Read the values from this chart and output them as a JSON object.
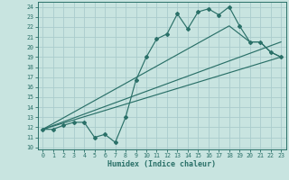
{
  "xlabel": "Humidex (Indice chaleur)",
  "bg_color": "#c8e4e0",
  "grid_color": "#aacccc",
  "line_color": "#2a7068",
  "xlim": [
    -0.5,
    23.5
  ],
  "ylim": [
    9.8,
    24.5
  ],
  "xticks": [
    0,
    1,
    2,
    3,
    4,
    5,
    6,
    7,
    8,
    9,
    10,
    11,
    12,
    13,
    14,
    15,
    16,
    17,
    18,
    19,
    20,
    21,
    22,
    23
  ],
  "yticks": [
    10,
    11,
    12,
    13,
    14,
    15,
    16,
    17,
    18,
    19,
    20,
    21,
    22,
    23,
    24
  ],
  "wavy_x": [
    0,
    1,
    2,
    3,
    4,
    5,
    6,
    7,
    8,
    9,
    10,
    11,
    12,
    13,
    14,
    15,
    16,
    17,
    18,
    19,
    20,
    21,
    22,
    23
  ],
  "wavy_y": [
    11.8,
    11.8,
    12.2,
    12.5,
    12.5,
    11.0,
    11.3,
    10.5,
    13.0,
    16.7,
    19.0,
    20.8,
    21.3,
    23.3,
    21.8,
    23.5,
    23.8,
    23.2,
    24.0,
    22.1,
    20.5,
    20.5,
    19.5,
    19.0
  ],
  "trend1_x": [
    0,
    23
  ],
  "trend1_y": [
    11.8,
    19.0
  ],
  "trend2_x": [
    0,
    23
  ],
  "trend2_y": [
    11.8,
    20.5
  ],
  "trend3_x": [
    0,
    18,
    20,
    21,
    22,
    23
  ],
  "trend3_y": [
    11.8,
    22.1,
    20.5,
    20.5,
    19.5,
    19.0
  ]
}
